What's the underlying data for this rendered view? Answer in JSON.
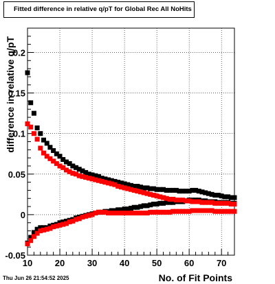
{
  "chart_data": {
    "type": "scatter",
    "title": "Fitted difference in relative q/pT for Global Rec All NoHits",
    "xlabel": "No. of Fit Points",
    "ylabel": "difference in relative q/pT",
    "xlim": [
      10,
      74
    ],
    "ylim": [
      -0.05,
      0.23
    ],
    "x_ticks": [
      10,
      20,
      30,
      40,
      50,
      60,
      70
    ],
    "y_ticks": [
      -0.05,
      0,
      0.05,
      0.1,
      0.15,
      0.2
    ],
    "x_tick_labels": [
      "10",
      "20",
      "30",
      "40",
      "50",
      "60",
      "70"
    ],
    "y_tick_labels": [
      "-0.05",
      "0",
      "0.05",
      "0.1",
      "0.15",
      "0.2"
    ],
    "grid": true,
    "series": [
      {
        "color": "#000000",
        "x": [
          10,
          11,
          12,
          13,
          14,
          15,
          16,
          17,
          18,
          19,
          20,
          21,
          22,
          23,
          24,
          25,
          26,
          27,
          28,
          29,
          30,
          31,
          32,
          33,
          34,
          35,
          36,
          37,
          38,
          39,
          40,
          41,
          42,
          43,
          44,
          45,
          46,
          47,
          48,
          49,
          50,
          51,
          52,
          53,
          54,
          55,
          56,
          57,
          58,
          59,
          60,
          61,
          62,
          63,
          64,
          65,
          66,
          67,
          68,
          69,
          70,
          71,
          72,
          73,
          74
        ],
        "values": [
          0.175,
          0.138,
          0.125,
          0.107,
          0.1,
          0.092,
          0.088,
          0.083,
          0.079,
          0.075,
          0.072,
          0.068,
          0.065,
          0.063,
          0.06,
          0.058,
          0.056,
          0.054,
          0.052,
          0.05,
          0.049,
          0.048,
          0.047,
          0.045,
          0.044,
          0.043,
          0.042,
          0.041,
          0.04,
          0.039,
          0.038,
          0.037,
          0.036,
          0.035,
          0.035,
          0.034,
          0.033,
          0.033,
          0.032,
          0.032,
          0.031,
          0.031,
          0.031,
          0.03,
          0.03,
          0.03,
          0.03,
          0.029,
          0.029,
          0.029,
          0.029,
          0.03,
          0.03,
          0.029,
          0.028,
          0.027,
          0.026,
          0.025,
          0.024,
          0.024,
          0.023,
          0.022,
          0.022,
          0.021,
          0.021
        ]
      },
      {
        "color": "#000000",
        "x": [
          10,
          11,
          12,
          13,
          14,
          15,
          16,
          17,
          18,
          19,
          20,
          21,
          22,
          23,
          24,
          25,
          26,
          27,
          28,
          29,
          30,
          31,
          32,
          33,
          34,
          35,
          36,
          37,
          38,
          39,
          40,
          41,
          42,
          43,
          44,
          45,
          46,
          47,
          48,
          49,
          50,
          51,
          52,
          53,
          54,
          55,
          56,
          57,
          58,
          59,
          60,
          61,
          62,
          63,
          64,
          65,
          66,
          67,
          68,
          69,
          70,
          71,
          72,
          73,
          74
        ],
        "values": [
          -0.035,
          -0.028,
          -0.022,
          -0.018,
          -0.016,
          -0.016,
          -0.016,
          -0.014,
          -0.013,
          -0.012,
          -0.01,
          -0.009,
          -0.008,
          -0.007,
          -0.006,
          -0.004,
          -0.003,
          -0.002,
          -0.001,
          0.0,
          0.001,
          0.002,
          0.003,
          0.003,
          0.004,
          0.004,
          0.005,
          0.005,
          0.006,
          0.006,
          0.007,
          0.007,
          0.008,
          0.009,
          0.009,
          0.01,
          0.011,
          0.011,
          0.012,
          0.013,
          0.013,
          0.014,
          0.014,
          0.015,
          0.015,
          0.015,
          0.016,
          0.016,
          0.016,
          0.017,
          0.018,
          0.018,
          0.018,
          0.018,
          0.017,
          0.017,
          0.016,
          0.016,
          0.016,
          0.015,
          0.015,
          0.015,
          0.015,
          0.014,
          0.014
        ]
      },
      {
        "color": "#ff0000",
        "x": [
          10,
          11,
          12,
          13,
          14,
          15,
          16,
          17,
          18,
          19,
          20,
          21,
          22,
          23,
          24,
          25,
          26,
          27,
          28,
          29,
          30,
          31,
          32,
          33,
          34,
          35,
          36,
          37,
          38,
          39,
          40,
          41,
          42,
          43,
          44,
          45,
          46,
          47,
          48,
          49,
          50,
          51,
          52,
          53,
          54,
          55,
          56,
          57,
          58,
          59,
          60,
          61,
          62,
          63,
          64,
          65,
          66,
          67,
          68,
          69,
          70,
          71,
          72,
          73,
          74
        ],
        "values": [
          0.112,
          0.108,
          0.1,
          0.093,
          0.082,
          0.076,
          0.072,
          0.069,
          0.066,
          0.063,
          0.06,
          0.058,
          0.055,
          0.053,
          0.051,
          0.05,
          0.048,
          0.047,
          0.046,
          0.045,
          0.044,
          0.043,
          0.042,
          0.041,
          0.04,
          0.039,
          0.038,
          0.037,
          0.035,
          0.034,
          0.033,
          0.032,
          0.031,
          0.03,
          0.029,
          0.028,
          0.027,
          0.026,
          0.025,
          0.024,
          0.023,
          0.022,
          0.021,
          0.02,
          0.019,
          0.019,
          0.018,
          0.018,
          0.018,
          0.017,
          0.017,
          0.016,
          0.016,
          0.016,
          0.015,
          0.015,
          0.015,
          0.015,
          0.014,
          0.014,
          0.014,
          0.014,
          0.014,
          0.013,
          0.013
        ]
      },
      {
        "color": "#ff0000",
        "x": [
          10,
          11,
          12,
          13,
          14,
          15,
          16,
          17,
          18,
          19,
          20,
          21,
          22,
          23,
          24,
          25,
          26,
          27,
          28,
          29,
          30,
          31,
          32,
          33,
          34,
          35,
          36,
          37,
          38,
          39,
          40,
          41,
          42,
          43,
          44,
          45,
          46,
          47,
          48,
          49,
          50,
          51,
          52,
          53,
          54,
          55,
          56,
          57,
          58,
          59,
          60,
          61,
          62,
          63,
          64,
          65,
          66,
          67,
          68,
          69,
          70,
          71,
          72,
          73,
          74
        ],
        "values": [
          -0.036,
          -0.032,
          -0.027,
          -0.023,
          -0.02,
          -0.019,
          -0.018,
          -0.017,
          -0.015,
          -0.014,
          -0.013,
          -0.012,
          -0.011,
          -0.009,
          -0.008,
          -0.006,
          -0.005,
          -0.003,
          -0.002,
          -0.001,
          0.0,
          0.002,
          0.003,
          0.003,
          0.003,
          0.002,
          0.002,
          0.002,
          0.002,
          0.002,
          0.002,
          0.002,
          0.002,
          0.002,
          0.002,
          0.002,
          0.002,
          0.002,
          0.003,
          0.003,
          0.003,
          0.003,
          0.003,
          0.003,
          0.003,
          0.004,
          0.004,
          0.004,
          0.004,
          0.004,
          0.004,
          0.005,
          0.005,
          0.005,
          0.005,
          0.005,
          0.005,
          0.005,
          0.004,
          0.004,
          0.004,
          0.004,
          0.004,
          0.004,
          0.004
        ]
      }
    ]
  },
  "footer_text": "Thu Jun 26 21:54:52 2025"
}
